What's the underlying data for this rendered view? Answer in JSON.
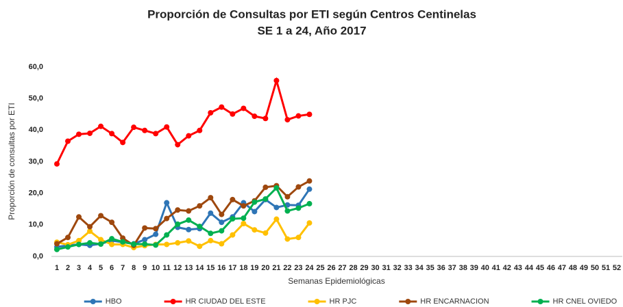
{
  "chart_data": {
    "type": "line",
    "title": "Proporción de Consultas por ETI según Centros Centinelas",
    "subtitle": "SE 1 a 24, Año 2017",
    "x_label": "Semanas Epidemiológicas",
    "y_label": "Proporción de consultas por ETI",
    "categories": [
      "1",
      "2",
      "3",
      "4",
      "5",
      "6",
      "7",
      "8",
      "9",
      "10",
      "11",
      "12",
      "13",
      "14",
      "15",
      "16",
      "17",
      "18",
      "19",
      "20",
      "21",
      "22",
      "23",
      "24",
      "25",
      "26",
      "27",
      "28",
      "29",
      "30",
      "31",
      "32",
      "33",
      "34",
      "35",
      "36",
      "37",
      "38",
      "39",
      "40",
      "41",
      "42",
      "43",
      "44",
      "45",
      "46",
      "47",
      "48",
      "49",
      "50",
      "51",
      "52"
    ],
    "ylim": [
      0,
      60
    ],
    "yticks": [
      {
        "value": 0,
        "label": "0,0"
      },
      {
        "value": 10,
        "label": "10,0"
      },
      {
        "value": 20,
        "label": "20,0"
      },
      {
        "value": 30,
        "label": "30,0"
      },
      {
        "value": 40,
        "label": "40,0"
      },
      {
        "value": 50,
        "label": "50,0"
      },
      {
        "value": 60,
        "label": "60,0"
      }
    ],
    "grid": false,
    "legend": "bottom",
    "series": [
      {
        "name": "HBO",
        "color": "#2e75b6",
        "values": [
          3.0,
          3.5,
          3.8,
          3.5,
          4.0,
          5.0,
          4.5,
          4.0,
          5.3,
          7.0,
          17.0,
          9.2,
          8.5,
          8.8,
          13.7,
          10.8,
          12.5,
          17.0,
          14.2,
          18.0,
          15.5,
          16.3,
          16.2,
          21.3,
          null,
          null,
          null,
          null,
          null,
          null,
          null,
          null,
          null,
          null,
          null,
          null,
          null,
          null,
          null,
          null,
          null,
          null,
          null,
          null,
          null,
          null,
          null,
          null,
          null,
          null,
          null,
          null
        ]
      },
      {
        "name": "HR CIUDAD DEL ESTE",
        "color": "#ff0000",
        "values": [
          29.3,
          36.5,
          38.7,
          39.0,
          41.2,
          38.9,
          36.1,
          40.9,
          39.9,
          38.9,
          41.0,
          35.4,
          38.2,
          39.9,
          45.5,
          47.3,
          45.1,
          46.9,
          44.4,
          43.7,
          55.7,
          43.3,
          44.5,
          45.0,
          null,
          null,
          null,
          null,
          null,
          null,
          null,
          null,
          null,
          null,
          null,
          null,
          null,
          null,
          null,
          null,
          null,
          null,
          null,
          null,
          null,
          null,
          null,
          null,
          null,
          null,
          null,
          null
        ]
      },
      {
        "name": "HR PJC",
        "color": "#ffc000",
        "values": [
          4.5,
          3.7,
          5.0,
          8.0,
          5.3,
          3.8,
          3.8,
          2.8,
          3.4,
          3.8,
          3.8,
          4.3,
          4.9,
          3.2,
          5.0,
          4.0,
          6.8,
          10.4,
          8.4,
          7.4,
          11.8,
          5.5,
          6.0,
          10.6,
          null,
          null,
          null,
          null,
          null,
          null,
          null,
          null,
          null,
          null,
          null,
          null,
          null,
          null,
          null,
          null,
          null,
          null,
          null,
          null,
          null,
          null,
          null,
          null,
          null,
          null,
          null,
          null
        ]
      },
      {
        "name": "HR ENCARNACION",
        "color": "#9e480e",
        "values": [
          4.0,
          6.0,
          12.5,
          9.4,
          12.9,
          10.8,
          5.8,
          3.5,
          9.0,
          8.8,
          12.0,
          14.7,
          14.4,
          16.0,
          18.6,
          13.3,
          18.0,
          16.0,
          17.6,
          21.9,
          22.4,
          18.9,
          22.0,
          23.9,
          null,
          null,
          null,
          null,
          null,
          null,
          null,
          null,
          null,
          null,
          null,
          null,
          null,
          null,
          null,
          null,
          null,
          null,
          null,
          null,
          null,
          null,
          null,
          null,
          null,
          null,
          null,
          null
        ]
      },
      {
        "name": "HR CNEL OVIEDO",
        "color": "#00b050",
        "values": [
          2.2,
          3.0,
          3.8,
          4.3,
          3.9,
          5.6,
          4.6,
          3.9,
          3.9,
          3.6,
          6.8,
          10.2,
          11.5,
          9.5,
          7.3,
          8.1,
          11.9,
          12.1,
          17.2,
          18.2,
          21.7,
          14.4,
          15.3,
          16.7,
          null,
          null,
          null,
          null,
          null,
          null,
          null,
          null,
          null,
          null,
          null,
          null,
          null,
          null,
          null,
          null,
          null,
          null,
          null,
          null,
          null,
          null,
          null,
          null,
          null,
          null,
          null,
          null
        ]
      }
    ]
  }
}
